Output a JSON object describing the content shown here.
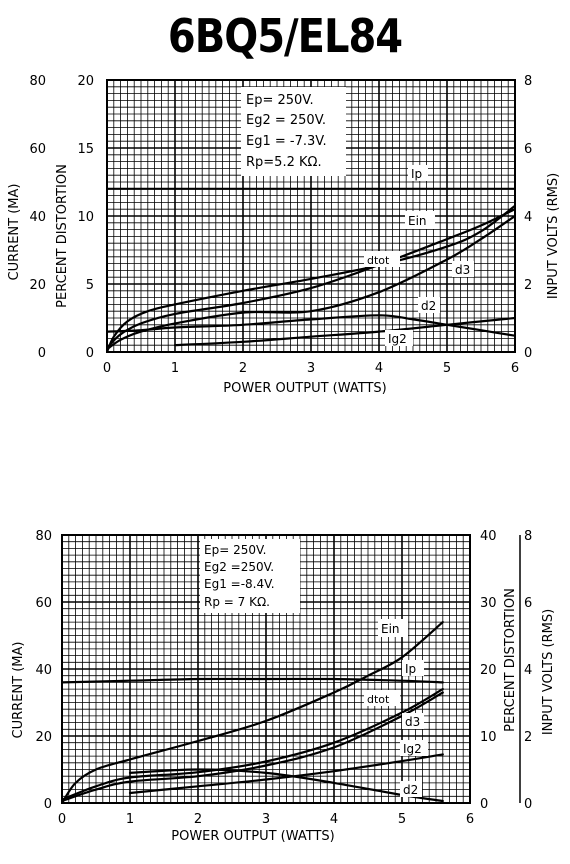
{
  "title": "6BQ5/EL84",
  "chart_data": [
    {
      "type": "line",
      "xlabel": "POWER  OUTPUT (WATTS)",
      "xlim": [
        0,
        6
      ],
      "x_ticks": [
        "0",
        "1",
        "2",
        "3",
        "4",
        "5",
        "6"
      ],
      "axes": [
        {
          "label": "CURRENT (MA)",
          "range": [
            0,
            80
          ],
          "ticks": [
            "0",
            "20",
            "40",
            "60",
            "80"
          ],
          "side": "left-outer"
        },
        {
          "label": "PERCENT DISTORTION",
          "range": [
            0,
            20
          ],
          "ticks": [
            "0",
            "5",
            "10",
            "15",
            "20"
          ],
          "side": "left-inner"
        },
        {
          "label": "INPUT VOLTS (RMS)",
          "range": [
            0,
            8
          ],
          "ticks": [
            "0",
            "2",
            "4",
            "6",
            "8"
          ],
          "side": "right"
        }
      ],
      "conditions": [
        "Ep= 250V.",
        "Eg2 = 250V.",
        "Eg1 = -7.3V.",
        "Rp=5.2 KΩ."
      ],
      "grid": true,
      "series": [
        {
          "name": "Ip",
          "axis": 0,
          "x": [
            0,
            1,
            2,
            3,
            4,
            5,
            6
          ],
          "y": [
            48,
            48,
            48,
            48,
            48,
            48,
            48
          ]
        },
        {
          "name": "Ein",
          "axis": 2,
          "x": [
            0,
            0.1,
            0.3,
            0.6,
            1,
            2,
            3,
            4,
            5,
            5.5,
            6
          ],
          "y": [
            0,
            0.45,
            0.9,
            1.2,
            1.4,
            1.8,
            2.15,
            2.55,
            3.1,
            3.55,
            4.3
          ]
        },
        {
          "name": "dtot",
          "axis": 1,
          "x": [
            0,
            0.2,
            0.5,
            1,
            2,
            3,
            4,
            5,
            5.5,
            6
          ],
          "y": [
            0.3,
            1.3,
            2.1,
            2.8,
            3.6,
            4.7,
            6.4,
            8.3,
            9.3,
            10.5
          ]
        },
        {
          "name": "d3",
          "axis": 1,
          "x": [
            0,
            0.2,
            0.5,
            1,
            2,
            3,
            4,
            5,
            5.5,
            6
          ],
          "y": [
            0.2,
            0.9,
            1.5,
            2.1,
            2.9,
            3.0,
            4.4,
            6.8,
            8.3,
            10.0
          ]
        },
        {
          "name": "d2",
          "axis": 1,
          "x": [
            0,
            0.5,
            1,
            2,
            3,
            4,
            4.5,
            5,
            5.5,
            6
          ],
          "y": [
            1.5,
            1.6,
            1.8,
            2.0,
            2.4,
            2.7,
            2.4,
            2.0,
            1.6,
            1.2
          ]
        },
        {
          "name": "Ig2",
          "axis": 0,
          "x": [
            1,
            2,
            3,
            4,
            5,
            6
          ],
          "y": [
            2,
            3,
            4.5,
            6,
            8,
            10
          ]
        }
      ],
      "series_labels": [
        "Ip",
        "Ein",
        "dtot",
        "d3",
        "d2",
        "Ig2"
      ]
    },
    {
      "type": "line",
      "xlabel": "POWER  OUTPUT  (WATTS)",
      "xlim": [
        0,
        6
      ],
      "x_ticks": [
        "0",
        "1",
        "2",
        "3",
        "4",
        "5",
        "6"
      ],
      "axes": [
        {
          "label": "CURRENT (MA)",
          "range": [
            0,
            80
          ],
          "ticks": [
            "0",
            "20",
            "40",
            "60",
            "80"
          ],
          "side": "left"
        },
        {
          "label": "PERCENT DISTORTION",
          "range": [
            0,
            40
          ],
          "ticks": [
            "0",
            "10",
            "20",
            "30",
            "40"
          ],
          "side": "right-inner"
        },
        {
          "label": "INPUT VOLTS (RMS)",
          "range": [
            0,
            8
          ],
          "ticks": [
            "0",
            "2",
            "4",
            "6",
            "8"
          ],
          "side": "right-outer"
        }
      ],
      "conditions": [
        "Ep= 250V.",
        "Eg2 =250V.",
        "Eg1 =-8.4V.",
        "Rp = 7 KΩ."
      ],
      "grid": true,
      "series": [
        {
          "name": "Ip",
          "axis": 0,
          "x": [
            0,
            1,
            2,
            3,
            4,
            5,
            5.6
          ],
          "y": [
            36,
            36.5,
            37,
            37,
            37,
            36.5,
            36
          ]
        },
        {
          "name": "Ein",
          "axis": 2,
          "x": [
            0,
            0.2,
            0.5,
            1,
            2,
            3,
            4,
            4.5,
            5,
            5.6
          ],
          "y": [
            0,
            0.6,
            1.0,
            1.3,
            1.85,
            2.45,
            3.3,
            3.8,
            4.35,
            5.4
          ]
        },
        {
          "name": "dtot",
          "axis": 1,
          "x": [
            0,
            0.5,
            1,
            2,
            3,
            4,
            5,
            5.6
          ],
          "y": [
            0.5,
            2.5,
            3.8,
            4.6,
            6.2,
            9.0,
            13.5,
            17
          ]
        },
        {
          "name": "d3",
          "axis": 1,
          "x": [
            0,
            0.5,
            1,
            2,
            3,
            4,
            5,
            5.6
          ],
          "y": [
            0.3,
            2.0,
            3.2,
            4.0,
            5.6,
            8.3,
            13.0,
            16.5
          ]
        },
        {
          "name": "d2",
          "axis": 1,
          "x": [
            1,
            2,
            3,
            4,
            5,
            5.6
          ],
          "y": [
            4.5,
            5.0,
            4.5,
            3.0,
            1.2,
            0.3
          ]
        },
        {
          "name": "Ig2",
          "axis": 0,
          "x": [
            1,
            2,
            3,
            4,
            5,
            5.6
          ],
          "y": [
            3,
            5,
            7,
            9.5,
            12.5,
            14.5
          ]
        }
      ],
      "series_labels": [
        "Ein",
        "Ip",
        "dtot",
        "d3",
        "Ig2",
        "d2"
      ]
    }
  ]
}
